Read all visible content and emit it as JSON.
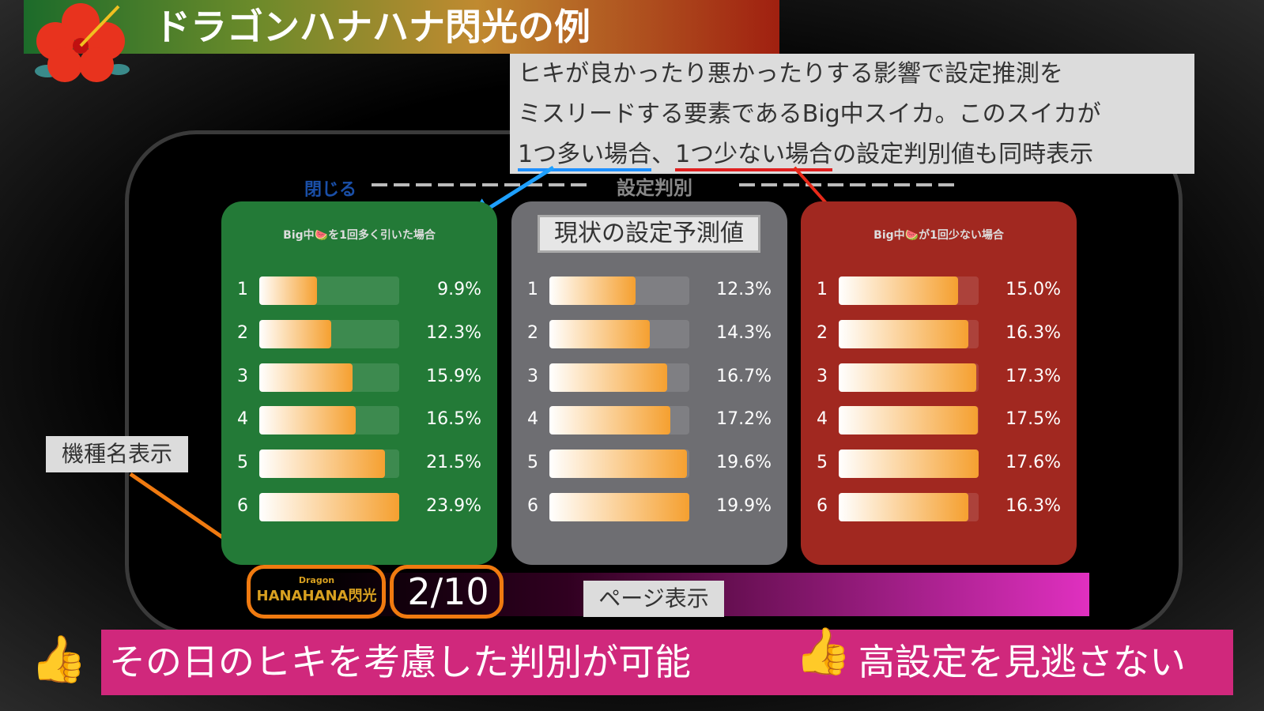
{
  "title": "ドラゴンハナハナ閃光の例",
  "callout": {
    "line1": "ヒキが良かったり悪かったりする影響で設定推測を",
    "line2": "ミスリードする要素であるBig中スイカ。このスイカが",
    "line3_a": "1つ多い場合",
    "line3_sep": "、",
    "line3_b": "1つ少ない場合",
    "line3_c": "の設定判別値も同時表示"
  },
  "panel": {
    "close_label": "閉じる",
    "title": "設定判別"
  },
  "cards": [
    {
      "header": "Big中🍉を1回多く引いた場合",
      "color": "#237a37",
      "rows": [
        {
          "setting": "1",
          "value": "9.9%",
          "pct": 9.9
        },
        {
          "setting": "2",
          "value": "12.3%",
          "pct": 12.3
        },
        {
          "setting": "3",
          "value": "15.9%",
          "pct": 15.9
        },
        {
          "setting": "4",
          "value": "16.5%",
          "pct": 16.5
        },
        {
          "setting": "5",
          "value": "21.5%",
          "pct": 21.5
        },
        {
          "setting": "6",
          "value": "23.9%",
          "pct": 23.9
        }
      ]
    },
    {
      "header": "現状の設定予測値",
      "color": "#6e6e72",
      "rows": [
        {
          "setting": "1",
          "value": "12.3%",
          "pct": 12.3
        },
        {
          "setting": "2",
          "value": "14.3%",
          "pct": 14.3
        },
        {
          "setting": "3",
          "value": "16.7%",
          "pct": 16.7
        },
        {
          "setting": "4",
          "value": "17.2%",
          "pct": 17.2
        },
        {
          "setting": "5",
          "value": "19.6%",
          "pct": 19.6
        },
        {
          "setting": "6",
          "value": "19.9%",
          "pct": 19.9
        }
      ]
    },
    {
      "header": "Big中🍉が1回少ない場合",
      "color": "#a12820",
      "rows": [
        {
          "setting": "1",
          "value": "15.0%",
          "pct": 15.0
        },
        {
          "setting": "2",
          "value": "16.3%",
          "pct": 16.3
        },
        {
          "setting": "3",
          "value": "17.3%",
          "pct": 17.3
        },
        {
          "setting": "4",
          "value": "17.5%",
          "pct": 17.5
        },
        {
          "setting": "5",
          "value": "17.6%",
          "pct": 17.6
        },
        {
          "setting": "6",
          "value": "16.3%",
          "pct": 16.3
        }
      ]
    }
  ],
  "model_logo": {
    "line1": "Dragon",
    "line2": "HANAHANA閃光"
  },
  "page_indicator": "2/10",
  "annotations": {
    "model_name": "機種名表示",
    "page_display": "ページ表示"
  },
  "bottom_banner": {
    "left": "その日のヒキを考慮した判別が可能",
    "right": "高設定を見逃さない"
  }
}
